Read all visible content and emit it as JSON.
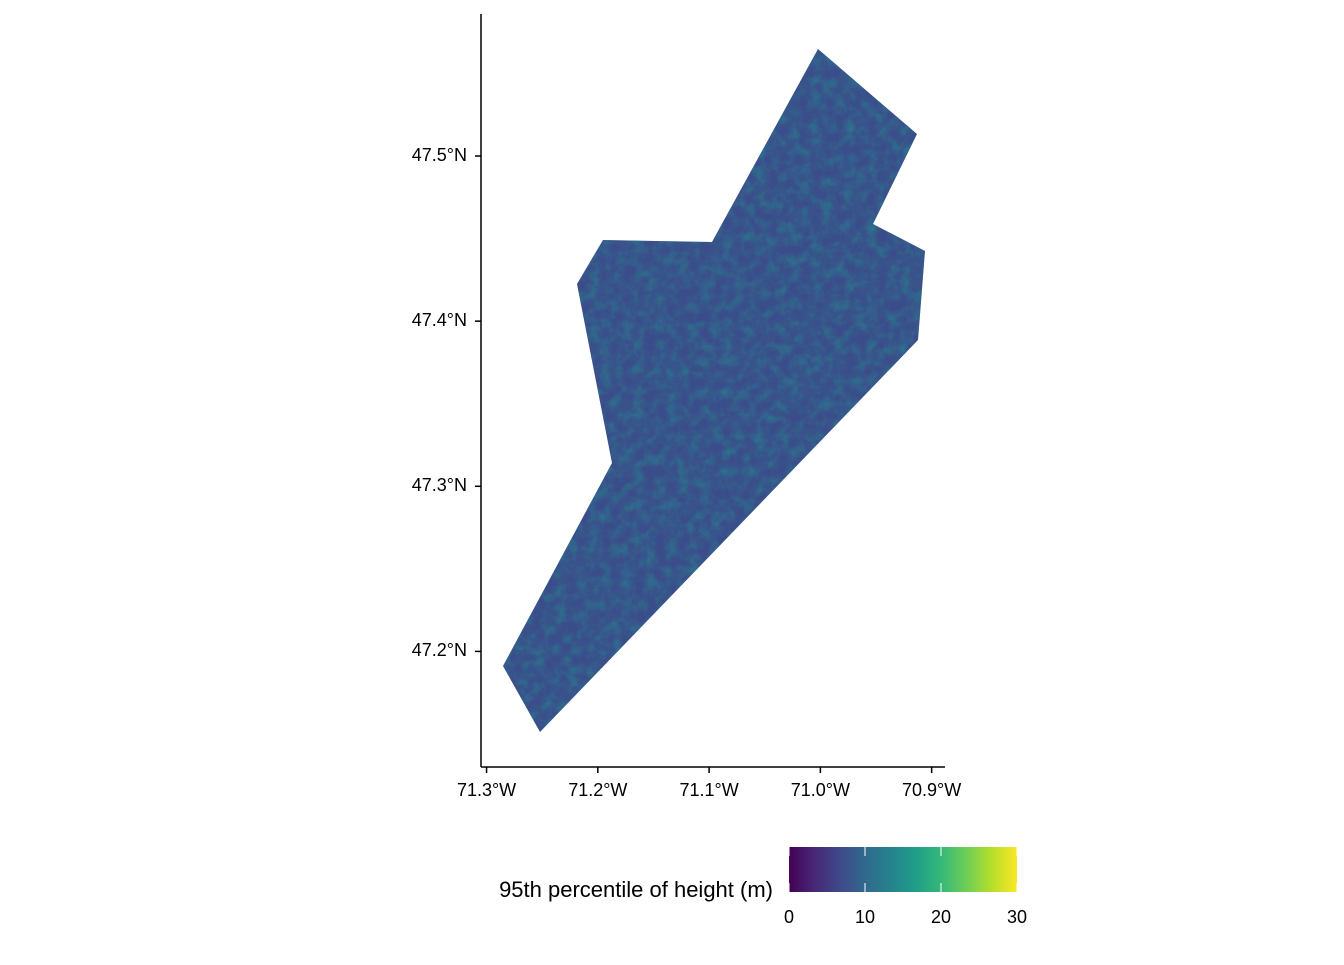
{
  "chart_data": {
    "type": "raster",
    "xlim": [
      -71.305,
      -70.888
    ],
    "ylim": [
      47.13,
      47.586
    ],
    "xticks": [
      {
        "value": -71.3,
        "label": "71.3°W"
      },
      {
        "value": -71.2,
        "label": "71.2°W"
      },
      {
        "value": -71.1,
        "label": "71.1°W"
      },
      {
        "value": -71.0,
        "label": "71.0°W"
      },
      {
        "value": -70.9,
        "label": "70.9°W"
      }
    ],
    "yticks": [
      {
        "value": 47.2,
        "label": "47.2°N"
      },
      {
        "value": 47.3,
        "label": "47.3°N"
      },
      {
        "value": 47.4,
        "label": "47.4°N"
      },
      {
        "value": 47.5,
        "label": "47.5°N"
      }
    ],
    "legend": {
      "title": "95th percentile of height (m)",
      "position": "bottom",
      "lim": [
        0,
        30
      ],
      "ticks": [
        0,
        10,
        20,
        30
      ],
      "colors": [
        "#440154",
        "#482878",
        "#3e4989",
        "#31688e",
        "#26828e",
        "#1f9e89",
        "#35b779",
        "#6ece58",
        "#b5de2b",
        "#fde725"
      ]
    }
  }
}
